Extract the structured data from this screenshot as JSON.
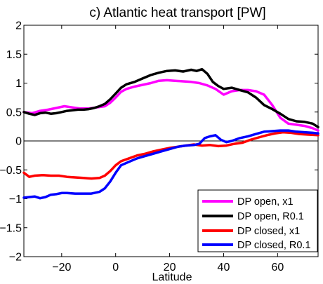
{
  "chart_data": {
    "type": "line",
    "title": "c) Atlantic heat transport [PW]",
    "xlabel": "Latitude",
    "ylabel": "",
    "xlim": [
      -34,
      75
    ],
    "ylim": [
      -2,
      2
    ],
    "xticks": [
      -20,
      0,
      20,
      40,
      60
    ],
    "yticks": [
      -2,
      -1.5,
      -1,
      -0.5,
      0,
      0.5,
      1,
      1.5,
      2
    ],
    "xtick_labels": [
      "−20",
      "0",
      "20",
      "40",
      "60"
    ],
    "ytick_labels": [
      "−2",
      "−1.5",
      "−1",
      "−0.5",
      "0",
      "0.5",
      "1",
      "1.5",
      "2"
    ],
    "grid": false,
    "zero_line": true,
    "legend_position": "bottom-right",
    "series": [
      {
        "name": "DP open, x1",
        "color": "#ff00ff",
        "x": [
          -34,
          -31,
          -28,
          -25,
          -22,
          -19,
          -16,
          -13,
          -10,
          -7,
          -4,
          -2,
          0,
          2,
          4,
          7,
          10,
          13,
          16,
          19,
          22,
          25,
          28,
          31,
          34,
          37,
          40,
          43,
          46,
          49,
          52,
          55,
          58,
          61,
          64,
          67,
          70,
          73,
          75
        ],
        "y": [
          0.5,
          0.48,
          0.52,
          0.54,
          0.57,
          0.6,
          0.58,
          0.56,
          0.56,
          0.58,
          0.6,
          0.66,
          0.75,
          0.85,
          0.9,
          0.94,
          0.97,
          1.0,
          1.04,
          1.05,
          1.04,
          1.03,
          1.02,
          1.0,
          0.96,
          0.9,
          0.8,
          0.86,
          0.88,
          0.88,
          0.86,
          0.8,
          0.62,
          0.4,
          0.3,
          0.28,
          0.26,
          0.22,
          0.18
        ]
      },
      {
        "name": "DP open, R0.1",
        "color": "#000000",
        "x": [
          -34,
          -32,
          -30,
          -28,
          -26,
          -24,
          -22,
          -20,
          -18,
          -16,
          -14,
          -12,
          -10,
          -8,
          -6,
          -4,
          -2,
          0,
          2,
          4,
          7,
          10,
          13,
          16,
          19,
          22,
          25,
          28,
          30,
          32,
          34,
          36,
          38,
          40,
          43,
          46,
          49,
          52,
          55,
          58,
          61,
          64,
          67,
          70,
          73,
          75
        ],
        "y": [
          0.5,
          0.47,
          0.45,
          0.48,
          0.49,
          0.47,
          0.48,
          0.5,
          0.52,
          0.53,
          0.54,
          0.54,
          0.55,
          0.57,
          0.6,
          0.64,
          0.72,
          0.82,
          0.92,
          0.98,
          1.02,
          1.08,
          1.14,
          1.18,
          1.21,
          1.22,
          1.2,
          1.23,
          1.21,
          1.24,
          1.16,
          1.02,
          0.95,
          0.9,
          0.92,
          0.88,
          0.84,
          0.75,
          0.62,
          0.55,
          0.47,
          0.38,
          0.34,
          0.33,
          0.3,
          0.24
        ]
      },
      {
        "name": "DP closed, x1",
        "color": "#ff0000",
        "x": [
          -34,
          -32,
          -30,
          -27,
          -24,
          -21,
          -18,
          -15,
          -12,
          -9,
          -6,
          -4,
          -2,
          0,
          2,
          5,
          8,
          11,
          14,
          17,
          20,
          23,
          26,
          29,
          32,
          35,
          38,
          41,
          44,
          47,
          50,
          53,
          56,
          59,
          62,
          65,
          68,
          71,
          75
        ],
        "y": [
          -0.55,
          -0.62,
          -0.6,
          -0.59,
          -0.6,
          -0.6,
          -0.62,
          -0.63,
          -0.64,
          -0.65,
          -0.64,
          -0.6,
          -0.52,
          -0.42,
          -0.35,
          -0.3,
          -0.25,
          -0.22,
          -0.18,
          -0.15,
          -0.12,
          -0.1,
          -0.08,
          -0.06,
          -0.08,
          -0.07,
          -0.09,
          -0.08,
          -0.05,
          -0.03,
          0.02,
          0.06,
          0.1,
          0.13,
          0.15,
          0.14,
          0.12,
          0.11,
          0.1
        ]
      },
      {
        "name": "DP closed, R0.1",
        "color": "#0000ff",
        "x": [
          -34,
          -32,
          -30,
          -28,
          -26,
          -24,
          -22,
          -20,
          -18,
          -15,
          -12,
          -9,
          -6,
          -4,
          -2,
          0,
          2,
          5,
          8,
          11,
          14,
          17,
          20,
          23,
          26,
          29,
          31,
          33,
          35,
          37,
          39,
          41,
          43,
          46,
          49,
          52,
          55,
          58,
          61,
          64,
          67,
          70,
          73,
          75
        ],
        "y": [
          -0.98,
          -0.97,
          -0.96,
          -0.99,
          -0.97,
          -0.93,
          -0.92,
          -0.9,
          -0.9,
          -0.91,
          -0.91,
          -0.91,
          -0.88,
          -0.82,
          -0.7,
          -0.55,
          -0.42,
          -0.36,
          -0.3,
          -0.26,
          -0.22,
          -0.18,
          -0.14,
          -0.1,
          -0.08,
          -0.07,
          -0.05,
          0.05,
          0.08,
          0.1,
          0.02,
          -0.02,
          0.0,
          0.05,
          0.08,
          0.12,
          0.16,
          0.17,
          0.18,
          0.18,
          0.16,
          0.15,
          0.14,
          0.13
        ]
      }
    ]
  }
}
